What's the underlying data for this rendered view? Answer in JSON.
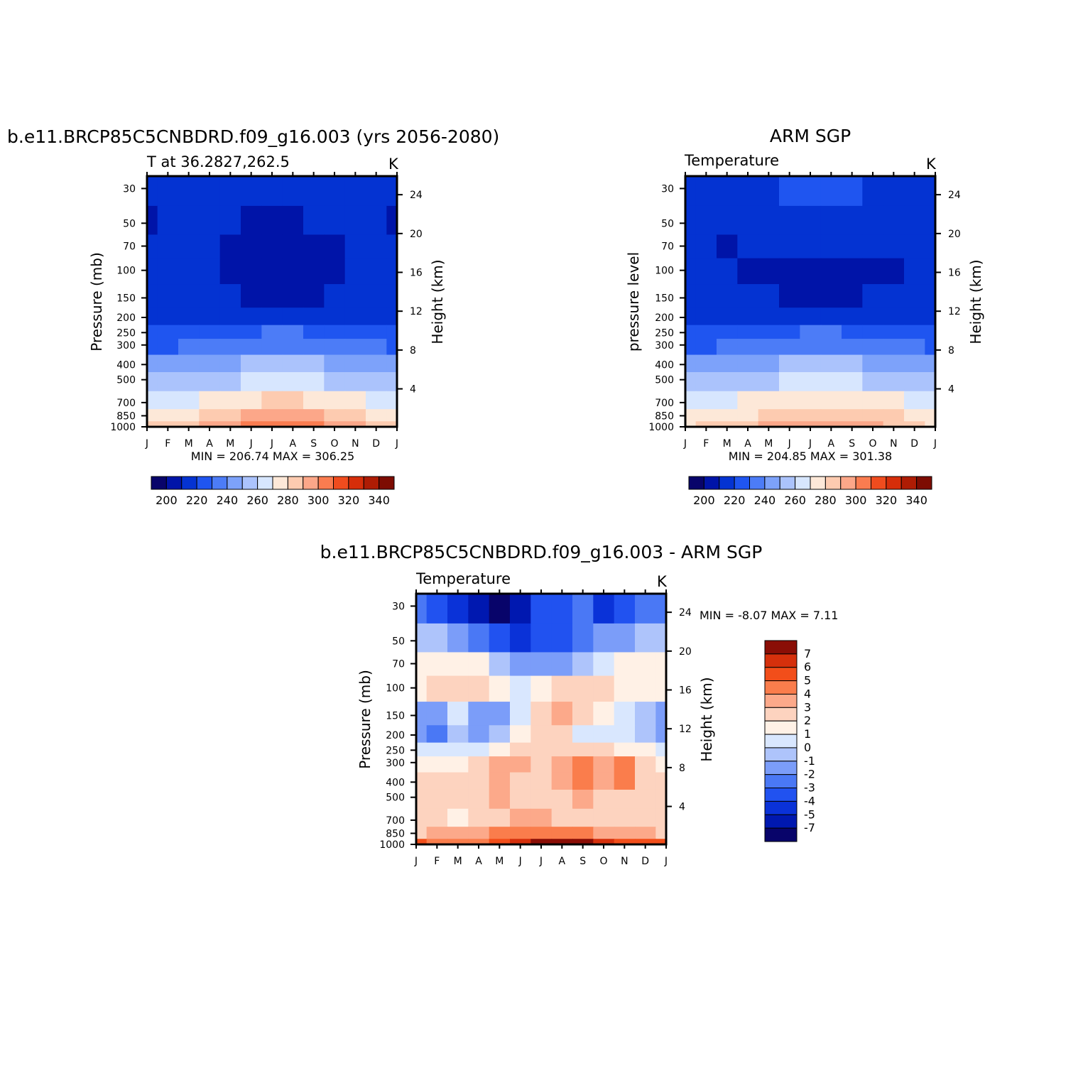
{
  "months": [
    "J",
    "F",
    "M",
    "A",
    "M",
    "J",
    "J",
    "A",
    "S",
    "O",
    "N",
    "D",
    "J"
  ],
  "pressure_ticks": [
    "30",
    "50",
    "70",
    "100",
    "150",
    "200",
    "250",
    "300",
    "400",
    "500",
    "700",
    "850",
    "1000"
  ],
  "height_ticks": [
    "24",
    "20",
    "16",
    "12",
    "8",
    "4"
  ],
  "abs_palette": [
    "#08046a",
    "#0014a8",
    "#0433d2",
    "#1f55f0",
    "#4c7cf7",
    "#7da2fa",
    "#abc3fc",
    "#d7e6fe",
    "#fde8d8",
    "#fdcbb0",
    "#fca789",
    "#fa7c50",
    "#f04c1e",
    "#d62e0a",
    "#ae1c04",
    "#7d0c02"
  ],
  "diff_palette": [
    "#08046a",
    "#0018b0",
    "#0a32d8",
    "#2152f0",
    "#4a78f5",
    "#7b9df9",
    "#aec4fb",
    "#d9e7fe",
    "#fff1e6",
    "#fdd3bf",
    "#fca98a",
    "#fa7d4c",
    "#f24e1a",
    "#d5300c",
    "#8a0e06"
  ],
  "panels": [
    {
      "id": "model",
      "title": "b.e11.BRCP85C5CNBDRD.f09_g16.003 (yrs 2056-2080)",
      "left_label": "T at 36.2827,262.5",
      "units": "K",
      "ylabel": "Pressure (mb)",
      "y2label": "Height (km)",
      "minmax": "MIN = 206.74 MAX = 306.25",
      "colorbar_labels": [
        "200",
        "220",
        "240",
        "260",
        "280",
        "300",
        "320",
        "340"
      ]
    },
    {
      "id": "obs",
      "title": "ARM SGP",
      "left_label": "Temperature",
      "units": "K",
      "ylabel": "pressure level",
      "y2label": "Height (km)",
      "minmax": "MIN = 204.85 MAX = 301.38",
      "colorbar_labels": [
        "200",
        "220",
        "240",
        "260",
        "280",
        "300",
        "320",
        "340"
      ]
    },
    {
      "id": "diff",
      "title": "b.e11.BRCP85C5CNBDRD.f09_g16.003 - ARM SGP",
      "left_label": "Temperature",
      "units": "K",
      "ylabel": "Pressure (mb)",
      "y2label": "Height (km)",
      "minmax": "MIN = -8.07 MAX = 7.11",
      "colorbar_labels": [
        "7",
        "6",
        "5",
        "4",
        "3",
        "2",
        "1",
        "0",
        "-1",
        "-2",
        "-3",
        "-4",
        "-5",
        "-7"
      ]
    }
  ],
  "chart_data": [
    {
      "type": "heatmap",
      "title": "b.e11.BRCP85C5CNBDRD.f09_g16.003 (yrs 2056-2080)",
      "subtitle": "T at 36.2827,262.5",
      "units": "K",
      "xlabel": "",
      "ylabel": "Pressure (mb)",
      "y2label": "Height (km)",
      "x": [
        "J",
        "F",
        "M",
        "A",
        "M",
        "J",
        "J",
        "A",
        "S",
        "O",
        "N",
        "D",
        "J"
      ],
      "y": [
        30,
        50,
        70,
        100,
        150,
        200,
        250,
        300,
        400,
        500,
        700,
        850,
        1000
      ],
      "y_scale": "log",
      "levels": [
        200,
        210,
        220,
        230,
        240,
        250,
        260,
        270,
        280,
        290,
        300,
        310,
        320,
        330,
        340
      ],
      "min": 206.74,
      "max": 306.25,
      "values": [
        [
          210,
          210,
          212,
          214,
          215,
          216,
          216,
          216,
          215,
          214,
          212,
          210,
          210
        ],
        [
          208,
          210,
          212,
          212,
          210,
          208,
          208,
          208,
          210,
          212,
          214,
          212,
          208
        ],
        [
          210,
          210,
          212,
          210,
          208,
          207,
          207,
          207,
          207,
          208,
          210,
          210,
          210
        ],
        [
          214,
          214,
          214,
          212,
          208,
          207,
          207,
          207,
          207,
          208,
          212,
          214,
          214
        ],
        [
          216,
          216,
          216,
          215,
          212,
          209,
          208,
          208,
          209,
          210,
          214,
          216,
          216
        ],
        [
          218,
          218,
          218,
          218,
          216,
          214,
          213,
          213,
          214,
          215,
          217,
          218,
          218
        ],
        [
          225,
          225,
          225,
          226,
          228,
          229,
          230,
          230,
          229,
          228,
          226,
          225,
          225
        ],
        [
          229,
          229,
          230,
          231,
          233,
          235,
          236,
          236,
          235,
          233,
          231,
          230,
          229
        ],
        [
          242,
          242,
          243,
          245,
          248,
          251,
          252,
          252,
          250,
          248,
          245,
          243,
          242
        ],
        [
          252,
          252,
          254,
          256,
          259,
          262,
          264,
          264,
          262,
          259,
          256,
          254,
          252
        ],
        [
          266,
          266,
          268,
          271,
          275,
          279,
          281,
          281,
          279,
          275,
          271,
          268,
          266
        ],
        [
          274,
          275,
          277,
          281,
          286,
          290,
          292,
          292,
          290,
          286,
          281,
          277,
          274
        ],
        [
          283,
          284,
          286,
          290,
          295,
          301,
          305,
          304,
          300,
          295,
          290,
          286,
          283
        ]
      ]
    },
    {
      "type": "heatmap",
      "title": "ARM SGP",
      "subtitle": "Temperature",
      "units": "K",
      "xlabel": "",
      "ylabel": "pressure level",
      "y2label": "Height (km)",
      "x": [
        "J",
        "F",
        "M",
        "A",
        "M",
        "J",
        "J",
        "A",
        "S",
        "O",
        "N",
        "D",
        "J"
      ],
      "y": [
        30,
        50,
        70,
        100,
        150,
        200,
        250,
        300,
        400,
        500,
        700,
        850,
        1000
      ],
      "y_scale": "log",
      "levels": [
        200,
        210,
        220,
        230,
        240,
        250,
        260,
        270,
        280,
        290,
        300,
        310,
        320,
        330,
        340
      ],
      "min": 204.85,
      "max": 301.38,
      "values": [
        [
          215,
          215,
          215,
          216,
          218,
          220,
          221,
          221,
          220,
          218,
          216,
          215,
          215
        ],
        [
          214,
          212,
          212,
          213,
          214,
          215,
          215,
          215,
          215,
          214,
          213,
          212,
          214
        ],
        [
          212,
          210,
          209,
          210,
          211,
          211,
          211,
          211,
          211,
          211,
          211,
          210,
          212
        ],
        [
          214,
          212,
          211,
          209,
          208,
          207,
          207,
          207,
          207,
          208,
          209,
          211,
          214
        ],
        [
          216,
          216,
          215,
          214,
          211,
          208,
          207,
          207,
          208,
          210,
          213,
          215,
          216
        ],
        [
          218,
          218,
          218,
          217,
          216,
          214,
          213,
          213,
          214,
          215,
          217,
          218,
          218
        ],
        [
          224,
          224,
          225,
          226,
          228,
          229,
          230,
          230,
          229,
          228,
          226,
          225,
          224
        ],
        [
          229,
          229,
          230,
          231,
          233,
          235,
          236,
          236,
          235,
          233,
          231,
          230,
          229
        ],
        [
          242,
          242,
          243,
          245,
          248,
          250,
          252,
          251,
          250,
          248,
          245,
          243,
          242
        ],
        [
          252,
          252,
          253,
          256,
          259,
          262,
          263,
          263,
          261,
          258,
          255,
          253,
          252
        ],
        [
          266,
          266,
          267,
          270,
          274,
          277,
          279,
          279,
          277,
          274,
          270,
          268,
          266
        ],
        [
          274,
          275,
          276,
          279,
          284,
          287,
          289,
          289,
          287,
          284,
          280,
          277,
          274
        ],
        [
          279,
          281,
          283,
          286,
          291,
          296,
          298,
          298,
          295,
          291,
          286,
          282,
          279
        ]
      ]
    },
    {
      "type": "heatmap",
      "title": "b.e11.BRCP85C5CNBDRD.f09_g16.003 - ARM SGP",
      "subtitle": "Temperature",
      "units": "K",
      "xlabel": "",
      "ylabel": "Pressure (mb)",
      "y2label": "Height (km)",
      "x": [
        "J",
        "F",
        "M",
        "A",
        "M",
        "J",
        "J",
        "A",
        "S",
        "O",
        "N",
        "D",
        "J"
      ],
      "y": [
        30,
        50,
        70,
        100,
        150,
        200,
        250,
        300,
        400,
        500,
        700,
        850,
        1000
      ],
      "y_scale": "log",
      "levels": [
        -7,
        -6,
        -5,
        -4,
        -3,
        -2,
        -1,
        0,
        1,
        2,
        3,
        4,
        5,
        6,
        7
      ],
      "min": -8.07,
      "max": 7.11,
      "values": [
        [
          -3.5,
          -4.5,
          -5.5,
          -6.5,
          -7.8,
          -7.0,
          -5.0,
          -4.8,
          -3.8,
          -5.8,
          -4.5,
          -3.2,
          -3.5
        ],
        [
          -1.5,
          -1.8,
          -2.3,
          -3.2,
          -5.0,
          -5.5,
          -5.0,
          -4.5,
          -3.5,
          -3.0,
          -2.2,
          -1.8,
          -1.5
        ],
        [
          0.5,
          0.8,
          0.8,
          0.6,
          -1.2,
          -2.5,
          -3.0,
          -2.5,
          -1.5,
          -0.5,
          0.3,
          0.5,
          0.5
        ],
        [
          0.5,
          1.2,
          1.5,
          1.5,
          0.5,
          -0.5,
          0.5,
          1.2,
          1.5,
          1.8,
          0.5,
          0.5,
          0.5
        ],
        [
          -2.2,
          -2.5,
          -1.0,
          -2.3,
          -2.8,
          -1.0,
          1.0,
          2.0,
          1.5,
          0.8,
          -0.5,
          -1.2,
          -2.2
        ],
        [
          -2.8,
          -3.5,
          -1.2,
          -2.5,
          -2.0,
          0.5,
          1.5,
          1.5,
          -0.5,
          -0.8,
          -0.5,
          -1.5,
          -2.8
        ],
        [
          -0.5,
          -0.5,
          -0.2,
          -0.8,
          0.5,
          1.5,
          1.5,
          1.5,
          1.0,
          1.0,
          0.5,
          0.5,
          -0.5
        ],
        [
          0.5,
          0.5,
          0.8,
          1.2,
          2.0,
          2.5,
          1.5,
          2.2,
          3.2,
          2.2,
          3.5,
          1.5,
          0.5
        ],
        [
          1.2,
          1.8,
          1.5,
          1.5,
          2.0,
          1.8,
          1.5,
          2.0,
          3.0,
          2.0,
          3.0,
          1.5,
          1.2
        ],
        [
          1.5,
          1.5,
          1.8,
          1.5,
          2.0,
          1.8,
          1.2,
          1.5,
          2.0,
          1.5,
          1.5,
          1.5,
          1.5
        ],
        [
          1.5,
          1.2,
          0.5,
          1.0,
          1.5,
          2.2,
          2.0,
          1.8,
          1.5,
          1.2,
          1.5,
          1.5,
          1.5
        ],
        [
          1.5,
          2.0,
          2.0,
          2.5,
          3.0,
          3.2,
          3.8,
          3.5,
          3.5,
          2.5,
          2.5,
          2.2,
          1.5
        ],
        [
          4.5,
          3.5,
          3.0,
          3.5,
          4.5,
          5.5,
          6.2,
          6.0,
          7.1,
          5.0,
          4.5,
          4.5,
          4.5
        ]
      ]
    }
  ]
}
